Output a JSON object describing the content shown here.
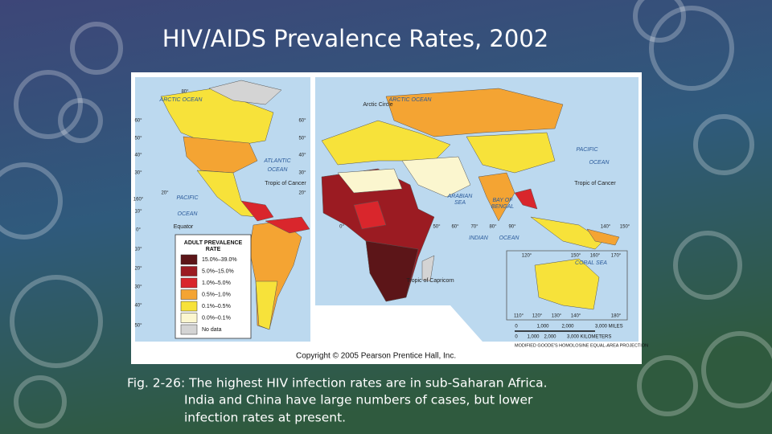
{
  "title": "HIV/AIDS Prevalence Rates, 2002",
  "map": {
    "legend": {
      "title": [
        "ADULT PREVALENCE",
        "RATE"
      ],
      "items": [
        {
          "label": "15.0%–39.0%",
          "color": "#5c1518"
        },
        {
          "label": "5.0%–15.0%",
          "color": "#9b1b22"
        },
        {
          "label": "1.0%–5.0%",
          "color": "#d9262c"
        },
        {
          "label": "0.5%–1.0%",
          "color": "#f4a433"
        },
        {
          "label": "0.1%–0.5%",
          "color": "#f7e23a"
        },
        {
          "label": "0.0%–0.1%",
          "color": "#fbf6cf"
        },
        {
          "label": "No data",
          "color": "#d4d4d4"
        }
      ]
    },
    "labels": [
      "ARCTIC OCEAN",
      "ARCTIC OCEAN",
      "Arctic Circle",
      "ATLANTIC",
      "OCEAN",
      "Tropic of Cancer",
      "PACIFIC",
      "OCEAN",
      "Equator",
      "PACIFIC",
      "OCEAN",
      "Tropic of Cancer",
      "ARABIAN",
      "SEA",
      "BAY OF",
      "BENGAL",
      "INDIAN",
      "OCEAN",
      "Tropic of Capricorn",
      "CORAL SEA"
    ],
    "degrees": [
      "80°",
      "60°",
      "50°",
      "40°",
      "30°",
      "20°",
      "10°",
      "0°",
      "10°",
      "20°",
      "30°",
      "40°",
      "50°",
      "60°",
      "50°",
      "40°",
      "30°",
      "20°",
      "160°",
      "0°",
      "50°",
      "60°",
      "70°",
      "80°",
      "90°",
      "140°",
      "150°",
      "120°",
      "150°",
      "160°",
      "170°",
      "110°",
      "120°",
      "130°",
      "140°",
      "180°"
    ],
    "scale": {
      "miles": [
        "0",
        "1,000",
        "2,000",
        "3,000 MILES"
      ],
      "km": [
        "0",
        "1,000",
        "2,000",
        "3,000 KILOMETERS"
      ]
    },
    "projection": "MODIFIED GOODE'S HOMOLOSINE EQUAL-AREA PROJECTION",
    "copyright": "Copyright © 2005 Pearson Prentice Hall, Inc."
  },
  "caption": [
    "Fig. 2-26: The highest HIV infection rates are in sub-Saharan Africa.",
    "India and China have large numbers of cases, but lower",
    "infection rates at present."
  ]
}
